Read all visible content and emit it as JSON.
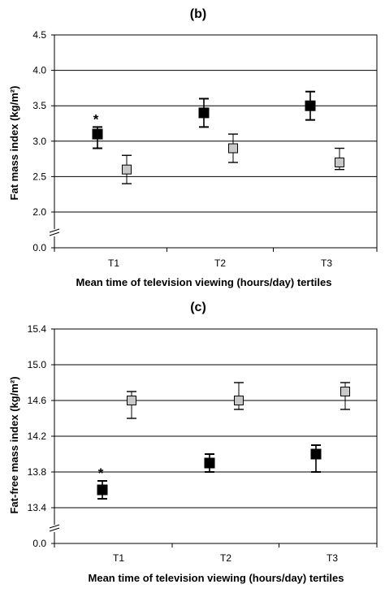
{
  "chart_data": [
    {
      "type": "scatter",
      "panel_title": "(b)",
      "xlabel": "Mean time of television viewing (hours/day) tertiles",
      "ylabel": "Fat mass index (kg/m²)",
      "categories": [
        "T1",
        "T2",
        "T3"
      ],
      "y_ticks": [
        "4.5",
        "4.0",
        "3.5",
        "3.0",
        "2.5",
        "2.0",
        "0.0"
      ],
      "ylim": [
        2.0,
        4.5
      ],
      "axis_break": true,
      "grid": "horizontal",
      "legend": "none",
      "series": [
        {
          "marker": "filled-square",
          "color": "#000000",
          "values": [
            3.1,
            3.4,
            3.5
          ],
          "err_low": [
            2.9,
            3.2,
            3.3
          ],
          "err_high": [
            3.2,
            3.6,
            3.7
          ]
        },
        {
          "marker": "gray-square",
          "color": "#c8c8c8",
          "values": [
            2.6,
            2.9,
            2.7
          ],
          "err_low": [
            2.4,
            2.7,
            2.6
          ],
          "err_high": [
            2.8,
            3.1,
            2.9
          ]
        }
      ],
      "annotations": [
        {
          "text": "*",
          "category": "T1",
          "series": 0
        }
      ]
    },
    {
      "type": "scatter",
      "panel_title": "(c)",
      "xlabel": "Mean time of television viewing (hours/day) tertiles",
      "ylabel": "Fat-free mass index (kg/m²)",
      "categories": [
        "T1",
        "T2",
        "T3"
      ],
      "y_ticks": [
        "15.4",
        "15.0",
        "14.6",
        "14.2",
        "13.8",
        "13.4",
        "0.0"
      ],
      "ylim": [
        13.4,
        15.4
      ],
      "axis_break": true,
      "grid": "horizontal",
      "legend": "none",
      "series": [
        {
          "marker": "filled-square",
          "color": "#000000",
          "values": [
            13.6,
            13.9,
            14.0
          ],
          "err_low": [
            13.5,
            13.8,
            13.8
          ],
          "err_high": [
            13.7,
            14.0,
            14.1
          ]
        },
        {
          "marker": "gray-square",
          "color": "#c8c8c8",
          "values": [
            14.6,
            14.6,
            14.7
          ],
          "err_low": [
            14.4,
            14.5,
            14.5
          ],
          "err_high": [
            14.7,
            14.8,
            14.8
          ]
        }
      ],
      "annotations": [
        {
          "text": "*",
          "category": "T1",
          "series": 0
        }
      ]
    }
  ]
}
